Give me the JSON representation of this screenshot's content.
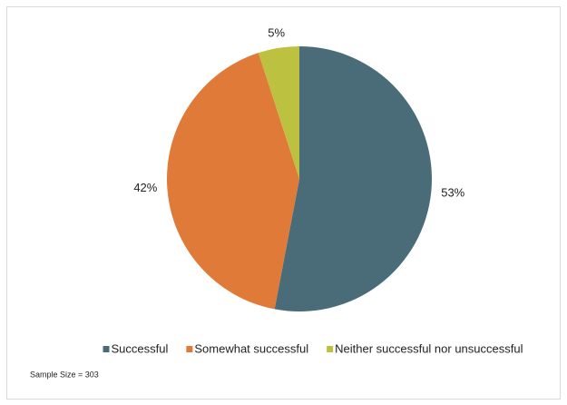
{
  "chart_data": {
    "type": "pie",
    "categories": [
      "Successful",
      "Somewhat successful",
      "Neither successful nor unsuccessful"
    ],
    "values": [
      53,
      42,
      5
    ],
    "value_labels": [
      "53%",
      "42%",
      "5%"
    ],
    "colors": [
      "#4a6b78",
      "#e07a38",
      "#bcc23f"
    ],
    "legend": "bottom",
    "note": "Sample Size = 303"
  }
}
